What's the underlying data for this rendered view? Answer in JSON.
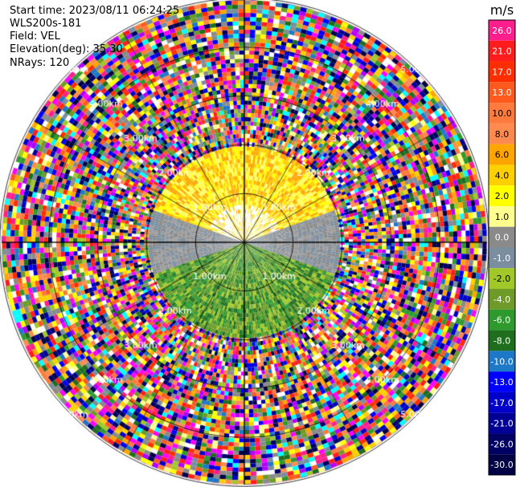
{
  "header": {
    "start_time": "Start time: 2023/08/11 06:24:25",
    "instrument": "WLS200s-181",
    "field": "Field: VEL",
    "elevation": "Elevation(deg): 35.30",
    "nrays": "NRays: 120"
  },
  "colorbar": {
    "unit": "m/s",
    "levels": [
      {
        "label": "26.0",
        "color": "#ff1e8c"
      },
      {
        "label": "21.0",
        "color": "#ff1c1c"
      },
      {
        "label": "17.0",
        "color": "#ff2d00"
      },
      {
        "label": "13.0",
        "color": "#ff5a1e"
      },
      {
        "label": "10.0",
        "color": "#ff7a3c"
      },
      {
        "label": "8.0",
        "color": "#ff8a50"
      },
      {
        "label": "6.0",
        "color": "#ffa500"
      },
      {
        "label": "4.0",
        "color": "#ffd000"
      },
      {
        "label": "2.0",
        "color": "#ffff00"
      },
      {
        "label": "1.0",
        "color": "#ffff90"
      },
      {
        "label": "0.0",
        "color": "#8a8a8a"
      },
      {
        "label": "-1.0",
        "color": "#7a8ea0"
      },
      {
        "label": "-2.0",
        "color": "#a0c828"
      },
      {
        "label": "-4.0",
        "color": "#6e9a28"
      },
      {
        "label": "-6.0",
        "color": "#2e9a2e"
      },
      {
        "label": "-8.0",
        "color": "#1e6e1e"
      },
      {
        "label": "-10.0",
        "color": "#1e78c8"
      },
      {
        "label": "-13.0",
        "color": "#0000ff"
      },
      {
        "label": "-17.0",
        "color": "#0000c8"
      },
      {
        "label": "-21.0",
        "color": "#000096"
      },
      {
        "label": "-26.0",
        "color": "#000064"
      },
      {
        "label": "-30.0",
        "color": "#000046"
      }
    ]
  },
  "chart_data": {
    "type": "ppi",
    "field": "VEL",
    "unit": "m/s",
    "range_ring_labels": [
      "1.00km",
      "2.00km",
      "3.00km",
      "4.00km",
      "5.00km"
    ],
    "range_rings_km": [
      1,
      2,
      3,
      4,
      5
    ],
    "nrays": 120,
    "velocity_sectors": [
      {
        "azimuth_deg": [
          290,
          70
        ],
        "range_km": [
          0,
          2.3
        ],
        "dominant_velocity": "2.0 to 6.0"
      },
      {
        "azimuth_deg": [
          70,
          110
        ],
        "range_km": [
          0,
          2.3
        ],
        "dominant_velocity": "-1.0 to 0.0"
      },
      {
        "azimuth_deg": [
          110,
          250
        ],
        "range_km": [
          0,
          2.3
        ],
        "dominant_velocity": "-8.0 to -2.0"
      },
      {
        "azimuth_deg": [
          250,
          290
        ],
        "range_km": [
          0,
          2.3
        ],
        "dominant_velocity": "-1.0 to 0.0"
      },
      {
        "azimuth_deg": [
          0,
          360
        ],
        "range_km": [
          2.3,
          6.0
        ],
        "dominant_velocity": "noise"
      }
    ]
  }
}
